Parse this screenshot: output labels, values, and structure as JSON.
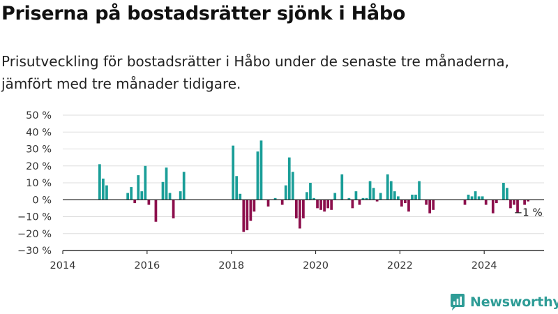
{
  "title": "Priserna på bostadsrätter sjönk i Håbo",
  "subtitle": "Prisutveckling för bostadsrätter i Håbo under de senaste tre månaderna, jämfört med tre månader tidigare.",
  "brand": {
    "name": "Newsworthy",
    "icon": "newsworthy-logo-icon"
  },
  "colors": {
    "positive": "#1a9e98",
    "negative": "#8c0f4c",
    "grid": "#dddddd",
    "axis": "#333333"
  },
  "chart_data": {
    "type": "bar",
    "title": "Priserna på bostadsrätter sjönk i Håbo",
    "xlabel": "",
    "ylabel": "",
    "unit": "%",
    "ylim": [
      -30,
      50
    ],
    "xlim": [
      2014.0,
      2025.42
    ],
    "y_ticks": [
      "50 %",
      "40 %",
      "30 %",
      "20 %",
      "10 %",
      "0 %",
      "−10 %",
      "−20 %",
      "−30 %"
    ],
    "x_ticks": [
      "2014",
      "2016",
      "2018",
      "2020",
      "2022",
      "2024"
    ],
    "grid": true,
    "last_value_label": "−1 %",
    "series": [
      {
        "values": [
          {
            "date": "2014-11",
            "value": 21
          },
          {
            "date": "2014-12",
            "value": 12.5
          },
          {
            "date": "2015-01",
            "value": 8.5
          },
          {
            "date": "2015-07",
            "value": 4
          },
          {
            "date": "2015-08",
            "value": 7.5
          },
          {
            "date": "2015-09",
            "value": -2
          },
          {
            "date": "2015-10",
            "value": 14.5
          },
          {
            "date": "2015-11",
            "value": 5
          },
          {
            "date": "2015-12",
            "value": 20
          },
          {
            "date": "2016-01",
            "value": -3
          },
          {
            "date": "2016-03",
            "value": -13
          },
          {
            "date": "2016-05",
            "value": 10.5
          },
          {
            "date": "2016-06",
            "value": 19
          },
          {
            "date": "2016-07",
            "value": 4
          },
          {
            "date": "2016-08",
            "value": -11
          },
          {
            "date": "2016-10",
            "value": 5
          },
          {
            "date": "2016-11",
            "value": 16.5
          },
          {
            "date": "2018-01",
            "value": 32
          },
          {
            "date": "2018-02",
            "value": 14
          },
          {
            "date": "2018-03",
            "value": 3.5
          },
          {
            "date": "2018-04",
            "value": -19
          },
          {
            "date": "2018-05",
            "value": -18
          },
          {
            "date": "2018-06",
            "value": -12.5
          },
          {
            "date": "2018-07",
            "value": -7
          },
          {
            "date": "2018-08",
            "value": 28.5
          },
          {
            "date": "2018-09",
            "value": 35
          },
          {
            "date": "2018-11",
            "value": -4
          },
          {
            "date": "2019-01",
            "value": 1
          },
          {
            "date": "2019-03",
            "value": -3
          },
          {
            "date": "2019-04",
            "value": 8.5
          },
          {
            "date": "2019-05",
            "value": 25
          },
          {
            "date": "2019-06",
            "value": 16.5
          },
          {
            "date": "2019-07",
            "value": -11
          },
          {
            "date": "2019-08",
            "value": -17
          },
          {
            "date": "2019-09",
            "value": -11
          },
          {
            "date": "2019-10",
            "value": 4.5
          },
          {
            "date": "2019-11",
            "value": 10
          },
          {
            "date": "2019-12",
            "value": 1
          },
          {
            "date": "2020-01",
            "value": -5
          },
          {
            "date": "2020-02",
            "value": -6
          },
          {
            "date": "2020-03",
            "value": -7
          },
          {
            "date": "2020-04",
            "value": -5
          },
          {
            "date": "2020-05",
            "value": -6
          },
          {
            "date": "2020-06",
            "value": 4
          },
          {
            "date": "2020-08",
            "value": 15
          },
          {
            "date": "2020-10",
            "value": 1
          },
          {
            "date": "2020-11",
            "value": -5
          },
          {
            "date": "2020-12",
            "value": 5
          },
          {
            "date": "2021-01",
            "value": -3
          },
          {
            "date": "2021-02",
            "value": 1
          },
          {
            "date": "2021-03",
            "value": 1
          },
          {
            "date": "2021-04",
            "value": 11
          },
          {
            "date": "2021-05",
            "value": 7
          },
          {
            "date": "2021-06",
            "value": -1
          },
          {
            "date": "2021-07",
            "value": 4
          },
          {
            "date": "2021-09",
            "value": 15
          },
          {
            "date": "2021-10",
            "value": 11
          },
          {
            "date": "2021-11",
            "value": 5
          },
          {
            "date": "2021-12",
            "value": 2
          },
          {
            "date": "2022-01",
            "value": -4
          },
          {
            "date": "2022-02",
            "value": -2
          },
          {
            "date": "2022-03",
            "value": -7
          },
          {
            "date": "2022-04",
            "value": 3
          },
          {
            "date": "2022-05",
            "value": 3
          },
          {
            "date": "2022-06",
            "value": 11
          },
          {
            "date": "2022-08",
            "value": -3
          },
          {
            "date": "2022-09",
            "value": -8
          },
          {
            "date": "2022-10",
            "value": -6
          },
          {
            "date": "2023-07",
            "value": -3
          },
          {
            "date": "2023-08",
            "value": 3
          },
          {
            "date": "2023-09",
            "value": 2
          },
          {
            "date": "2023-10",
            "value": 5
          },
          {
            "date": "2023-11",
            "value": 2
          },
          {
            "date": "2023-12",
            "value": 2
          },
          {
            "date": "2024-01",
            "value": -3
          },
          {
            "date": "2024-03",
            "value": -8
          },
          {
            "date": "2024-04",
            "value": -2
          },
          {
            "date": "2024-06",
            "value": 10
          },
          {
            "date": "2024-07",
            "value": 7
          },
          {
            "date": "2024-08",
            "value": -5
          },
          {
            "date": "2024-09",
            "value": -3
          },
          {
            "date": "2024-10",
            "value": -7.5
          },
          {
            "date": "2024-12",
            "value": -3
          },
          {
            "date": "2025-01",
            "value": -1
          }
        ]
      }
    ]
  }
}
